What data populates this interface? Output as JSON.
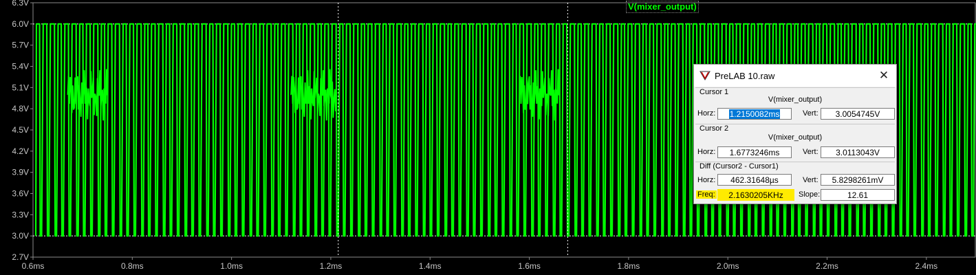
{
  "plot": {
    "trace_name": "V(mixer_output)",
    "trace_color": "#00ff00",
    "background": "#000000",
    "grid_color": "#8a8a8a",
    "y_ticks": [
      "6.3V",
      "6.0V",
      "5.7V",
      "5.4V",
      "5.1V",
      "4.8V",
      "4.5V",
      "4.2V",
      "3.9V",
      "3.6V",
      "3.3V",
      "3.0V",
      "2.7V"
    ],
    "x_ticks": [
      "0.6ms",
      "0.8ms",
      "1.0ms",
      "1.2ms",
      "1.4ms",
      "1.6ms",
      "1.8ms",
      "2.0ms",
      "2.2ms",
      "2.4ms"
    ],
    "x_range_ms": [
      0.6,
      2.5
    ],
    "y_range_v": [
      2.7,
      6.3
    ],
    "high_level_v": 6.0,
    "low_level_v": 3.0,
    "cursor1_ms": 1.2150082,
    "cursor2_ms": 1.6773246
  },
  "dialog": {
    "title": "PreLAB 10.raw",
    "close_glyph": "✕",
    "cursor1": {
      "group_label": "Cursor 1",
      "signal": "V(mixer_output)",
      "horz_label": "Horz:",
      "horz_value": "1.2150082ms",
      "vert_label": "Vert:",
      "vert_value": "3.0054745V"
    },
    "cursor2": {
      "group_label": "Cursor 2",
      "signal": "V(mixer_output)",
      "horz_label": "Horz:",
      "horz_value": "1.6773246ms",
      "vert_label": "Vert:",
      "vert_value": "3.0113043V"
    },
    "diff": {
      "group_label": "Diff (Cursor2 - Cursor1)",
      "horz_label": "Horz:",
      "horz_value": "462.31648µs",
      "vert_label": "Vert:",
      "vert_value": "5.8298261mV",
      "freq_label": "Freq:",
      "freq_value": "2.1630205KHz",
      "slope_label": "Slope:",
      "slope_value": "12.61"
    }
  }
}
